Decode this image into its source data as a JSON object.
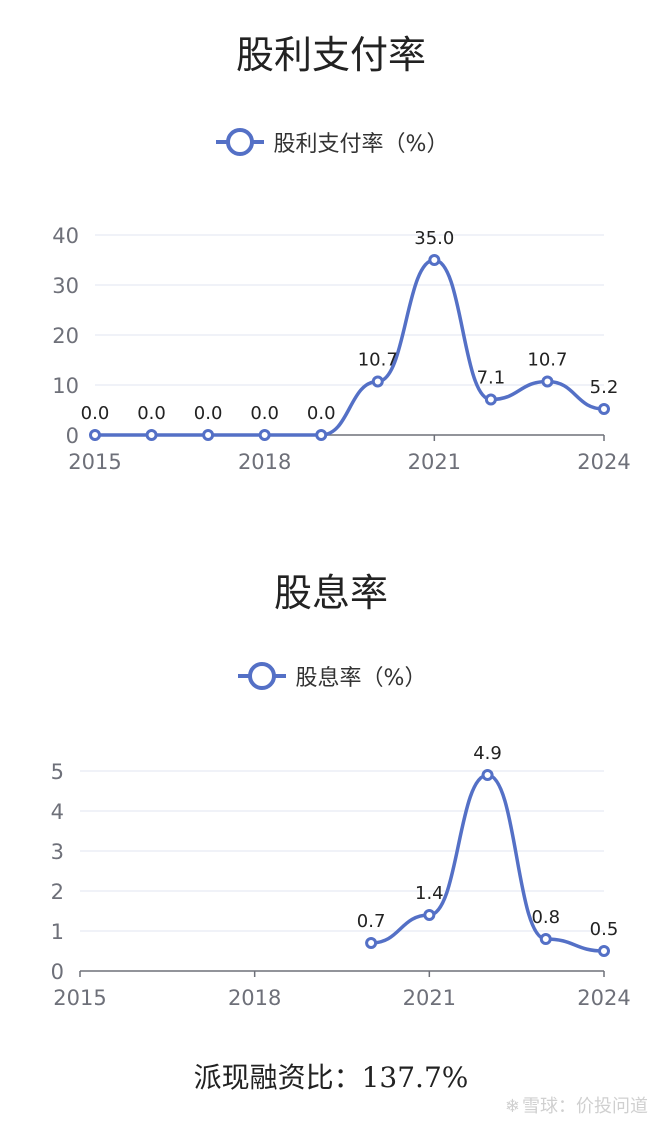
{
  "chart_data": [
    {
      "type": "line",
      "title": "股利支付率",
      "legend": [
        "股利支付率（%）"
      ],
      "legend_position": "top-center",
      "x": [
        2015,
        2016,
        2017,
        2018,
        2019,
        2020,
        2021,
        2022,
        2023,
        2024
      ],
      "x_tick_labels": [
        "2015",
        "2018",
        "2021",
        "2024"
      ],
      "series": [
        {
          "name": "股利支付率（%）",
          "color": "#5470c6",
          "values": [
            0.0,
            0.0,
            0.0,
            0.0,
            0.0,
            10.7,
            35.0,
            7.1,
            10.7,
            5.2
          ],
          "labels": [
            "0.0",
            "0.0",
            "0.0",
            "0.0",
            "0.0",
            "10.7",
            "35.0",
            "7.1",
            "10.7",
            "5.2"
          ]
        }
      ],
      "ylim": [
        0,
        40
      ],
      "y_ticks": [
        0,
        10,
        20,
        30,
        40
      ],
      "smooth": true,
      "grid": "horizontal"
    },
    {
      "type": "line",
      "title": "股息率",
      "legend": [
        "股息率（%）"
      ],
      "legend_position": "top-center",
      "x": [
        2015,
        2016,
        2017,
        2018,
        2019,
        2020,
        2021,
        2022,
        2023,
        2024
      ],
      "x_tick_labels": [
        "2015",
        "2018",
        "2021",
        "2024"
      ],
      "series": [
        {
          "name": "股息率（%）",
          "color": "#5470c6",
          "values": [
            null,
            null,
            null,
            null,
            null,
            0.7,
            1.4,
            4.9,
            0.8,
            0.5
          ],
          "labels": [
            null,
            null,
            null,
            null,
            null,
            "0.7",
            "1.4",
            "4.9",
            "0.8",
            "0.5"
          ]
        }
      ],
      "ylim": [
        0,
        5
      ],
      "y_ticks": [
        0,
        1,
        2,
        3,
        4,
        5
      ],
      "smooth": true,
      "grid": "horizontal"
    }
  ],
  "footer_text": "派现融资比：137.7%",
  "watermark": {
    "logo_glyph": "❄",
    "text": "雪球：价投问道"
  }
}
